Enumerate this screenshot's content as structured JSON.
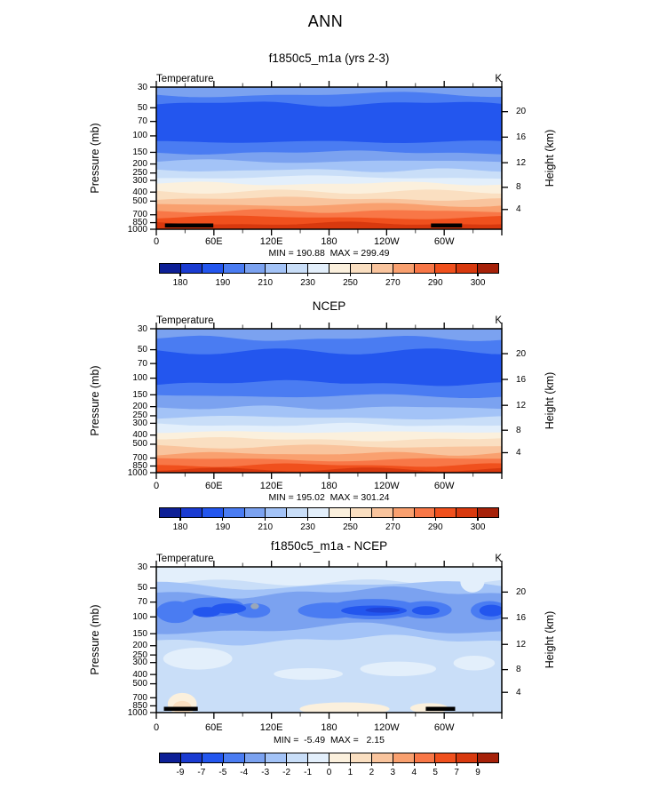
{
  "header": {
    "title": "ANN"
  },
  "palette": [
    "#0D1F96",
    "#1A3BD1",
    "#2356EE",
    "#4A7CF2",
    "#7BA2F0",
    "#A3C3F7",
    "#C9DEF8",
    "#E3EFFB",
    "#FBF0DD",
    "#FADFC1",
    "#F9C49D",
    "#F9A06F",
    "#F87747",
    "#F0501D",
    "#D8390E",
    "#A62109"
  ],
  "gray_patch_color": "#9AA7B8",
  "axes": {
    "x": {
      "tick_labels": [
        "0",
        "60E",
        "120E",
        "180",
        "120W",
        "60W"
      ]
    },
    "pressure": {
      "label": "Pressure (mb)",
      "ticks": [
        30,
        50,
        70,
        100,
        150,
        200,
        250,
        300,
        400,
        500,
        700,
        850,
        1000
      ]
    },
    "height": {
      "label": "Height (km)",
      "ticks": [
        20,
        16,
        12,
        8,
        4
      ]
    }
  },
  "chart_data": [
    {
      "id": "model",
      "type": "filled-contour-xz",
      "title": "f1850c5_m1a (yrs 2-3)",
      "variable": "Temperature",
      "units": "K",
      "stats": "MIN = 190.88  MAX = 299.49",
      "min": 190.88,
      "max": 299.49,
      "levels": [
        180,
        185,
        190,
        200,
        210,
        220,
        230,
        240,
        250,
        260,
        270,
        280,
        290,
        295,
        300
      ],
      "colorbar_labels": [
        {
          "text": "180",
          "b": 1
        },
        {
          "text": "190",
          "b": 3
        },
        {
          "text": "210",
          "b": 5
        },
        {
          "text": "230",
          "b": 7
        },
        {
          "text": "250",
          "b": 9
        },
        {
          "text": "270",
          "b": 11
        },
        {
          "text": "290",
          "b": 13
        },
        {
          "text": "300",
          "b": 15
        }
      ],
      "band_fractions": [
        0.056,
        0.119,
        0.388,
        0.463,
        0.525,
        0.588,
        0.638,
        0.681,
        0.738,
        0.788,
        0.831,
        0.875,
        0.919,
        0.963
      ],
      "band_color_indices": [
        4,
        3,
        2,
        3,
        4,
        5,
        6,
        7,
        8,
        9,
        10,
        11,
        12,
        13,
        14
      ],
      "topo_bars": [
        [
          0.025,
          0.165
        ],
        [
          0.795,
          0.885
        ]
      ]
    },
    {
      "id": "obs",
      "type": "filled-contour-xz",
      "title": "NCEP",
      "variable": "Temperature",
      "units": "K",
      "stats": "MIN = 195.02  MAX = 301.24",
      "min": 195.02,
      "max": 301.24,
      "levels": [
        180,
        185,
        190,
        200,
        210,
        220,
        230,
        240,
        250,
        260,
        270,
        280,
        290,
        295,
        300
      ],
      "colorbar_labels": [
        {
          "text": "180",
          "b": 1
        },
        {
          "text": "190",
          "b": 3
        },
        {
          "text": "210",
          "b": 5
        },
        {
          "text": "230",
          "b": 7
        },
        {
          "text": "250",
          "b": 9
        },
        {
          "text": "270",
          "b": 11
        },
        {
          "text": "290",
          "b": 13
        },
        {
          "text": "300",
          "b": 15
        }
      ],
      "band_fractions": [
        0.07,
        0.16,
        0.38,
        0.47,
        0.55,
        0.62,
        0.67,
        0.72,
        0.77,
        0.82,
        0.87,
        0.91,
        0.95,
        0.98
      ],
      "band_color_indices": [
        4,
        3,
        2,
        3,
        4,
        5,
        6,
        7,
        8,
        9,
        10,
        11,
        12,
        13,
        14
      ],
      "topo_bars": []
    },
    {
      "id": "diff",
      "type": "filled-contour-xz-difference",
      "title": "f1850c5_m1a - NCEP",
      "variable": "Temperature",
      "units": "K",
      "stats": "MIN =  -5.49  MAX =   2.15",
      "min": -5.49,
      "max": 2.15,
      "levels": [
        -9,
        -7,
        -5,
        -4,
        -3,
        -2,
        -1,
        0,
        1,
        2,
        3,
        4,
        5,
        7,
        9
      ],
      "colorbar_labels": [
        {
          "text": "-9",
          "b": 1
        },
        {
          "text": "-7",
          "b": 2
        },
        {
          "text": "-5",
          "b": 3
        },
        {
          "text": "-4",
          "b": 4
        },
        {
          "text": "-3",
          "b": 5
        },
        {
          "text": "-2",
          "b": 6
        },
        {
          "text": "-1",
          "b": 7
        },
        {
          "text": "0",
          "b": 8
        },
        {
          "text": "1",
          "b": 9
        },
        {
          "text": "2",
          "b": 10
        },
        {
          "text": "3",
          "b": 11
        },
        {
          "text": "4",
          "b": 12
        },
        {
          "text": "5",
          "b": 13
        },
        {
          "text": "7",
          "b": 14
        },
        {
          "text": "9",
          "b": 15
        }
      ],
      "background_color_index": 6,
      "strips": [
        {
          "top": 0.0,
          "bottom": 0.105,
          "ci": 7
        }
      ],
      "bands": [
        {
          "top": 0.128,
          "bottom": 0.5,
          "ci": 5
        },
        {
          "top": 0.178,
          "bottom": 0.425,
          "ci": 4
        }
      ],
      "ellipses": [
        {
          "cx": 0.055,
          "cy": 0.31,
          "rx": 0.055,
          "ry": 0.075,
          "ci": 3
        },
        {
          "cx": 0.16,
          "cy": 0.275,
          "rx": 0.095,
          "ry": 0.065,
          "ci": 3
        },
        {
          "cx": 0.28,
          "cy": 0.3,
          "rx": 0.05,
          "ry": 0.05,
          "ci": 3
        },
        {
          "cx": 0.5,
          "cy": 0.3,
          "rx": 0.09,
          "ry": 0.055,
          "ci": 3
        },
        {
          "cx": 0.63,
          "cy": 0.29,
          "rx": 0.135,
          "ry": 0.07,
          "ci": 3
        },
        {
          "cx": 0.78,
          "cy": 0.295,
          "rx": 0.075,
          "ry": 0.06,
          "ci": 3
        },
        {
          "cx": 0.965,
          "cy": 0.3,
          "rx": 0.055,
          "ry": 0.065,
          "ci": 3
        },
        {
          "cx": 0.145,
          "cy": 0.31,
          "rx": 0.04,
          "ry": 0.035,
          "ci": 2
        },
        {
          "cx": 0.21,
          "cy": 0.285,
          "rx": 0.05,
          "ry": 0.035,
          "ci": 2
        },
        {
          "cx": 0.63,
          "cy": 0.3,
          "rx": 0.095,
          "ry": 0.035,
          "ci": 2
        },
        {
          "cx": 0.78,
          "cy": 0.3,
          "rx": 0.04,
          "ry": 0.03,
          "ci": 2
        },
        {
          "cx": 0.97,
          "cy": 0.3,
          "rx": 0.035,
          "ry": 0.04,
          "ci": 2
        },
        {
          "cx": 0.655,
          "cy": 0.297,
          "rx": 0.05,
          "ry": 0.018,
          "color": "#1E43D8"
        },
        {
          "cx": 0.12,
          "cy": 0.63,
          "rx": 0.1,
          "ry": 0.075,
          "ci": 7
        },
        {
          "cx": 0.44,
          "cy": 0.735,
          "rx": 0.1,
          "ry": 0.04,
          "ci": 7
        },
        {
          "cx": 0.7,
          "cy": 0.7,
          "rx": 0.11,
          "ry": 0.05,
          "ci": 7
        },
        {
          "cx": 0.92,
          "cy": 0.66,
          "rx": 0.06,
          "ry": 0.05,
          "ci": 7
        },
        {
          "cx": 0.915,
          "cy": 0.1,
          "rx": 0.035,
          "ry": 0.075,
          "ci": 7
        },
        {
          "cx": 0.545,
          "cy": 0.975,
          "rx": 0.13,
          "ry": 0.045,
          "ci": 8
        },
        {
          "cx": 0.79,
          "cy": 0.97,
          "rx": 0.055,
          "ry": 0.035,
          "ci": 8
        },
        {
          "cx": 0.075,
          "cy": 0.94,
          "rx": 0.042,
          "ry": 0.075,
          "ci": 8
        },
        {
          "cx": 0.075,
          "cy": 0.965,
          "rx": 0.027,
          "ry": 0.045,
          "ci": 9
        },
        {
          "cx": 0.285,
          "cy": 0.27,
          "rx": 0.012,
          "ry": 0.02,
          "color": "#9AA7B8"
        }
      ],
      "topo_bars": [
        [
          0.022,
          0.12
        ],
        [
          0.78,
          0.865
        ]
      ]
    }
  ]
}
